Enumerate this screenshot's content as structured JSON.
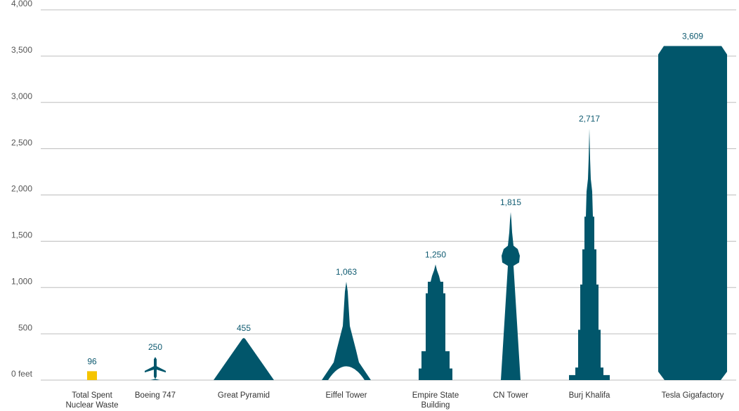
{
  "chart_data": {
    "type": "pictograph",
    "categories": [
      "Total Spent Nuclear Waste",
      "Boeing 747",
      "Great Pyramid",
      "Eiffel Tower",
      "Empire State Building",
      "CN Tower",
      "Burj Khalifa",
      "Tesla Gigafactory"
    ],
    "values": [
      96,
      250,
      455,
      1063,
      1250,
      1815,
      2717,
      3609
    ],
    "value_labels": [
      "96",
      "250",
      "455",
      "1,063",
      "1,250",
      "1,815",
      "2,717",
      "3,609"
    ],
    "colors": [
      "#f5c400",
      "#01566b",
      "#01566b",
      "#01566b",
      "#01566b",
      "#01566b",
      "#01566b",
      "#01566b"
    ],
    "ylim": [
      0,
      4000
    ],
    "yticks": [
      {
        "value": 0,
        "label": "0 feet"
      },
      500,
      {
        "value": 1000,
        "label": "1,000"
      },
      {
        "value": 1500,
        "label": "1,500"
      },
      {
        "value": 2000,
        "label": "2,000"
      },
      {
        "value": 2500,
        "label": "2,500"
      },
      {
        "value": 3000,
        "label": "3,000"
      },
      {
        "value": 3500,
        "label": "3,500"
      },
      {
        "value": 4000,
        "label": "4,000"
      }
    ],
    "grid": true
  }
}
